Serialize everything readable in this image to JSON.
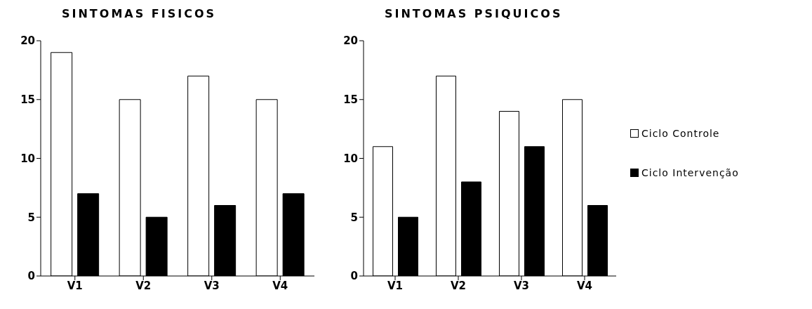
{
  "chart_data": [
    {
      "type": "bar",
      "title": "SINTOMAS FISICOS",
      "categories": [
        "V1",
        "V2",
        "V3",
        "V4"
      ],
      "series": [
        {
          "color": "#ffffff",
          "values": [
            19,
            15,
            17,
            15
          ]
        },
        {
          "color": "#000000",
          "values": [
            7,
            5,
            6,
            7
          ]
        }
      ],
      "ylim": [
        0,
        20
      ],
      "yticks": [
        0,
        5,
        10,
        15,
        20
      ],
      "grid": false,
      "legend": false
    },
    {
      "type": "bar",
      "title": "SINTOMAS PSIQUICOS",
      "categories": [
        "V1",
        "V2",
        "V3",
        "V4"
      ],
      "series": [
        {
          "name": "Ciclo Controle",
          "color": "#ffffff",
          "values": [
            11,
            17,
            14,
            15
          ]
        },
        {
          "name": "Ciclo Intervenção",
          "color": "#000000",
          "values": [
            5,
            8,
            11,
            6
          ]
        }
      ],
      "ylim": [
        0,
        20
      ],
      "yticks": [
        0,
        5,
        10,
        15,
        20
      ],
      "grid": false,
      "legend": "right"
    }
  ]
}
